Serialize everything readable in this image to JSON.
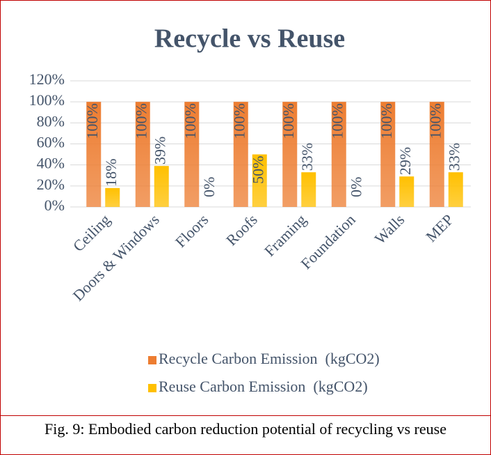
{
  "chart_data": {
    "type": "bar",
    "title": "Recycle vs Reuse",
    "categories": [
      "Ceiling",
      "Doors & Windows",
      "Floors",
      "Roofs",
      "Framing",
      "Foundation",
      "Walls",
      "MEP"
    ],
    "series": [
      {
        "name": "Recycle Carbon Emission  (kgCO2)",
        "color": "#ed7d31",
        "values": [
          100,
          100,
          100,
          100,
          100,
          100,
          100,
          100
        ],
        "value_labels": [
          "100%",
          "100%",
          "100%",
          "100%",
          "100%",
          "100%",
          "100%",
          "100%"
        ]
      },
      {
        "name": "Reuse Carbon Emission  (kgCO2)",
        "color": "#ffc000",
        "values": [
          18,
          39,
          0,
          50,
          33,
          0,
          29,
          33
        ],
        "value_labels": [
          "18%",
          "39%",
          "0%",
          "50%",
          "33%",
          "0%",
          "29%",
          "33%"
        ]
      }
    ],
    "ylim": [
      0,
      120
    ],
    "yticks": [
      {
        "value": 0,
        "label": "0%"
      },
      {
        "value": 20,
        "label": "20%"
      },
      {
        "value": 40,
        "label": "40%"
      },
      {
        "value": 60,
        "label": "60%"
      },
      {
        "value": 80,
        "label": "80%"
      },
      {
        "value": 100,
        "label": "100%"
      },
      {
        "value": 120,
        "label": "120%"
      }
    ],
    "grid": true,
    "legend": "bottom"
  },
  "caption": "Fig. 9: Embodied carbon reduction potential of recycling vs reuse"
}
